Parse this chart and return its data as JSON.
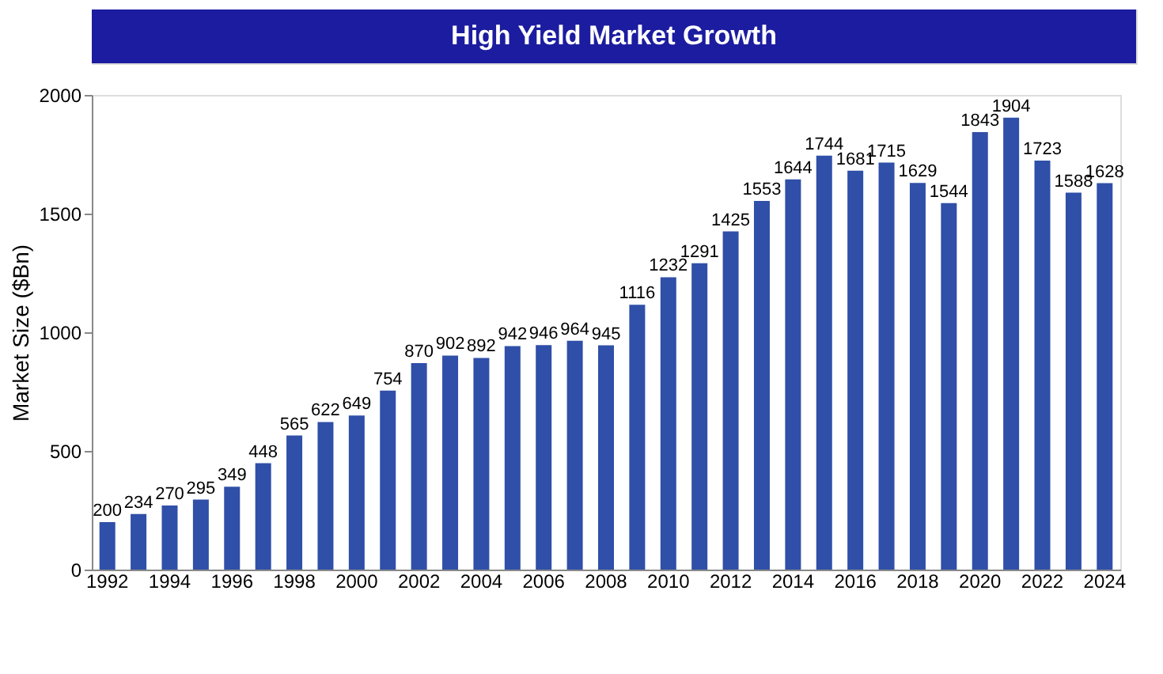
{
  "chart_data": {
    "type": "bar",
    "title": "High Yield Market Growth",
    "ylabel": "Market Size ($Bn)",
    "categories": [
      "1992",
      null,
      "1994",
      null,
      "1996",
      null,
      "1998",
      null,
      "2000",
      null,
      "2002",
      null,
      "2004",
      null,
      "2006",
      null,
      "2008",
      null,
      "2010",
      null,
      "2012",
      null,
      "2014",
      null,
      "2016",
      null,
      "2018",
      null,
      "2020",
      null,
      "2022",
      null,
      "2024"
    ],
    "values": [
      200,
      234,
      270,
      295,
      349,
      448,
      565,
      622,
      649,
      754,
      870,
      902,
      892,
      942,
      946,
      964,
      945,
      1116,
      1232,
      1291,
      1425,
      1553,
      1644,
      1744,
      1681,
      1715,
      1629,
      1544,
      1843,
      1904,
      1723,
      1588,
      1628
    ],
    "color": "#2f4fa8",
    "ylim": [
      0,
      2000
    ],
    "yticks": [
      0,
      500,
      1000,
      1500,
      2000
    ],
    "grid": false,
    "data_labels": true
  }
}
